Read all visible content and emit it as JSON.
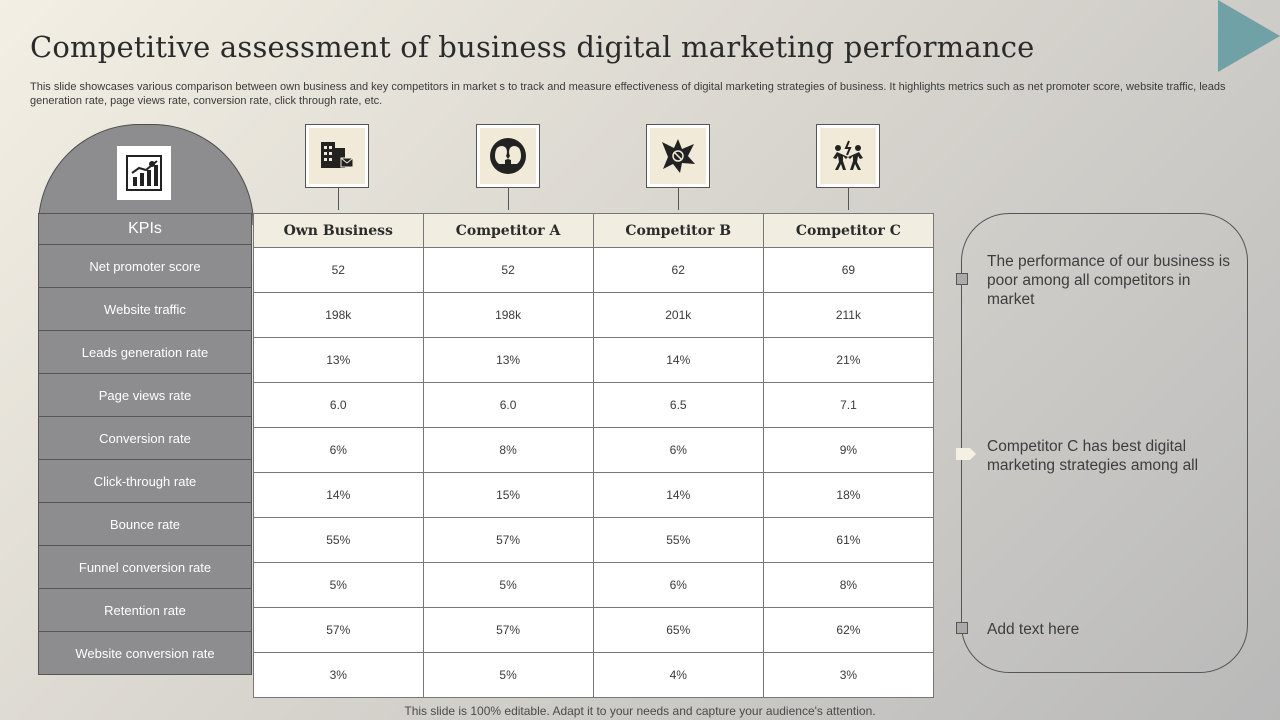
{
  "title": "Competitive assessment of business digital marketing performance",
  "subtitle": "This slide showcases various comparison between own business and key competitors in market s to track and measure effectiveness of digital marketing strategies of business. It highlights metrics such as net promoter score, website traffic, leads generation rate, page views rate, conversion rate, click through rate,  etc.",
  "kpi_header": "KPIs",
  "kpis": [
    "Net promoter  score",
    "Website traffic",
    "Leads generation rate",
    "Page views  rate",
    "Conversion  rate",
    "Click-through  rate",
    "Bounce rate",
    "Funnel conversion  rate",
    "Retention rate",
    "Website conversion  rate"
  ],
  "columns": [
    "Own Business",
    "Competitor A",
    "Competitor B",
    "Competitor C"
  ],
  "rows": [
    [
      "52",
      "52",
      "62",
      "69"
    ],
    [
      "198k",
      "198k",
      "201k",
      "211k"
    ],
    [
      "13%",
      "13%",
      "14%",
      "21%"
    ],
    [
      "6.0",
      "6.0",
      "6.5",
      "7.1"
    ],
    [
      "6%",
      "8%",
      "6%",
      "9%"
    ],
    [
      "14%",
      "15%",
      "14%",
      "18%"
    ],
    [
      "55%",
      "57%",
      "55%",
      "61%"
    ],
    [
      "5%",
      "5%",
      "6%",
      "8%"
    ],
    [
      "57%",
      "57%",
      "65%",
      "62%"
    ],
    [
      "3%",
      "5%",
      "4%",
      "3%"
    ]
  ],
  "icons": {
    "kpi": "kpi-chart-icon",
    "own_business": "office-building-icon",
    "competitor_a": "heads-facing-icon",
    "competitor_b": "collision-burst-icon",
    "competitor_c": "racing-people-icon"
  },
  "notes": [
    "The performance of our business is poor among all competitors in market",
    "Competitor C has best digital marketing strategies among all",
    "Add text here"
  ],
  "footer": "This slide is 100% editable. Adapt it to your needs and capture your audience's attention.",
  "colors": {
    "accent": "#6fa1a6",
    "kpi_fill": "#8d8d8f",
    "header_fill": "#f1ede0"
  }
}
